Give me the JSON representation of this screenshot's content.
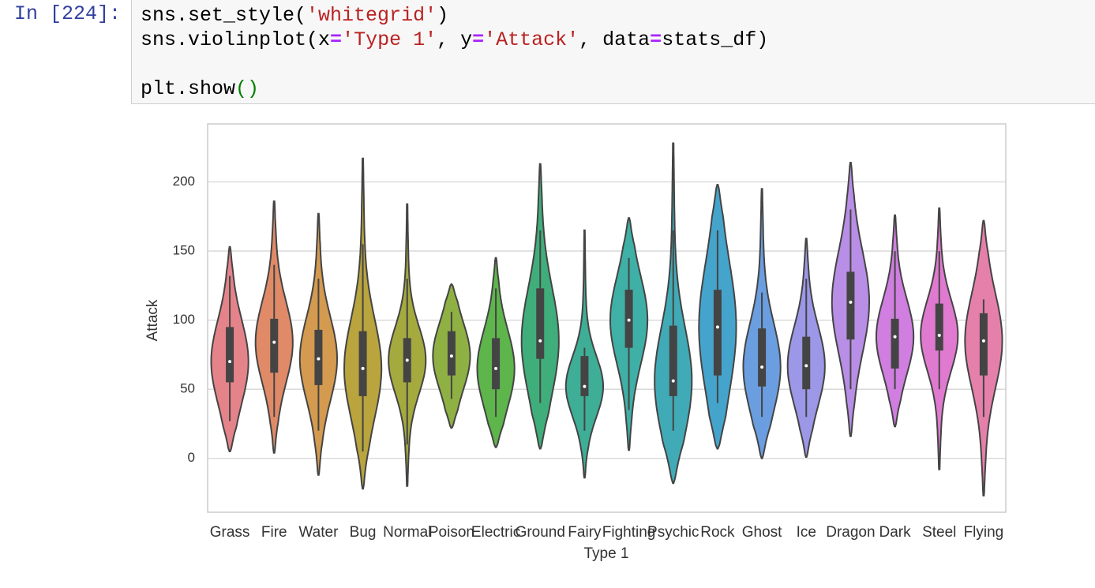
{
  "prompt": "In [224]:",
  "code": {
    "lines": [
      [
        "sns.set_style(",
        "'whitegrid'",
        ")"
      ],
      [
        "sns.violinplot(x",
        "=",
        "'Type 1'",
        ", y",
        "=",
        "'Attack'",
        ", data",
        "=",
        "stats_df)"
      ],
      [],
      [
        "plt.show",
        "()"
      ]
    ]
  },
  "chart_data": {
    "type": "violin",
    "xlabel": "Type 1",
    "ylabel": "Attack",
    "categories": [
      "Grass",
      "Fire",
      "Water",
      "Bug",
      "Normal",
      "Poison",
      "Electric",
      "Ground",
      "Fairy",
      "Fighting",
      "Psychic",
      "Rock",
      "Ghost",
      "Ice",
      "Dragon",
      "Dark",
      "Steel",
      "Flying"
    ],
    "colors": [
      "#e5838a",
      "#e08a68",
      "#d49a4f",
      "#b9a43e",
      "#a4aa3e",
      "#8fb043",
      "#5db54b",
      "#3fae7a",
      "#3fae96",
      "#3fb0a6",
      "#40abb7",
      "#45a4cc",
      "#6a9ee0",
      "#9c97e6",
      "#b88ee6",
      "#d07ee0",
      "#e07ad0",
      "#e580ab"
    ],
    "stats": [
      {
        "min": 5,
        "whisker_low": 27,
        "q1": 55,
        "median": 70,
        "q3": 95,
        "whisker_high": 132,
        "max": 153
      },
      {
        "min": 4,
        "whisker_low": 30,
        "q1": 62,
        "median": 84,
        "q3": 101,
        "whisker_high": 140,
        "max": 186
      },
      {
        "min": -12,
        "whisker_low": 20,
        "q1": 53,
        "median": 72,
        "q3": 93,
        "whisker_high": 130,
        "max": 177
      },
      {
        "min": -22,
        "whisker_low": 5,
        "q1": 45,
        "median": 65,
        "q3": 92,
        "whisker_high": 155,
        "max": 217
      },
      {
        "min": -20,
        "whisker_low": 10,
        "q1": 55,
        "median": 71,
        "q3": 87,
        "whisker_high": 130,
        "max": 184
      },
      {
        "min": 22,
        "whisker_low": 43,
        "q1": 60,
        "median": 74,
        "q3": 92,
        "whisker_high": 106,
        "max": 126
      },
      {
        "min": 8,
        "whisker_low": 30,
        "q1": 50,
        "median": 65,
        "q3": 87,
        "whisker_high": 123,
        "max": 145
      },
      {
        "min": 7,
        "whisker_low": 40,
        "q1": 72,
        "median": 85,
        "q3": 123,
        "whisker_high": 165,
        "max": 213
      },
      {
        "min": -14,
        "whisker_low": 20,
        "q1": 45,
        "median": 52,
        "q3": 74,
        "whisker_high": 80,
        "max": 165
      },
      {
        "min": 6,
        "whisker_low": 35,
        "q1": 80,
        "median": 100,
        "q3": 122,
        "whisker_high": 145,
        "max": 174
      },
      {
        "min": -18,
        "whisker_low": 20,
        "q1": 45,
        "median": 56,
        "q3": 96,
        "whisker_high": 165,
        "max": 228
      },
      {
        "min": 7,
        "whisker_low": 40,
        "q1": 60,
        "median": 95,
        "q3": 122,
        "whisker_high": 165,
        "max": 198
      },
      {
        "min": 0,
        "whisker_low": 30,
        "q1": 52,
        "median": 66,
        "q3": 94,
        "whisker_high": 120,
        "max": 195
      },
      {
        "min": 1,
        "whisker_low": 30,
        "q1": 50,
        "median": 67,
        "q3": 88,
        "whisker_high": 130,
        "max": 159
      },
      {
        "min": 16,
        "whisker_low": 50,
        "q1": 86,
        "median": 113,
        "q3": 135,
        "whisker_high": 180,
        "max": 214
      },
      {
        "min": 23,
        "whisker_low": 50,
        "q1": 65,
        "median": 88,
        "q3": 101,
        "whisker_high": 150,
        "max": 176
      },
      {
        "min": -8,
        "whisker_low": 50,
        "q1": 78,
        "median": 89,
        "q3": 112,
        "whisker_high": 150,
        "max": 181
      },
      {
        "min": -27,
        "whisker_low": 30,
        "q1": 60,
        "median": 85,
        "q3": 105,
        "whisker_high": 115,
        "max": 172
      }
    ],
    "ylim": [
      -39,
      242
    ],
    "yticks": [
      0,
      50,
      100,
      150,
      200
    ],
    "grid": true
  }
}
